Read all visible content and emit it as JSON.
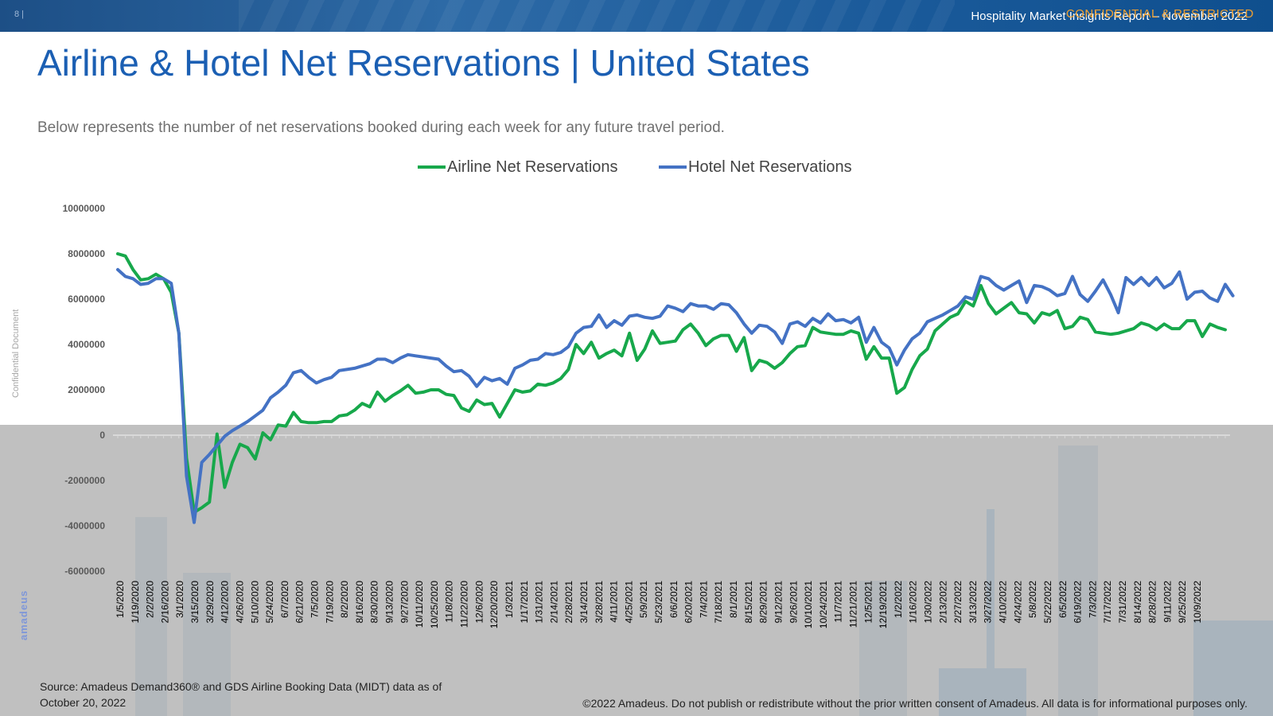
{
  "header": {
    "page_number": "8 |",
    "report_title": "Hospitality Market Insights Report – November 2022",
    "confidential": "CONFIDENTIAL & RESTRICTED"
  },
  "title": "Airline & Hotel Net Reservations | United States",
  "subtitle": "Below represents the number of net reservations booked during each week for any future travel period.",
  "side_label": "Confidential Document",
  "brand_mark": "amadeus",
  "source_note": "Source: Amadeus Demand360® and GDS Airline Booking Data (MIDT) data as of October 20, 2022",
  "copyright": "©2022 Amadeus. Do not publish or redistribute without the prior written consent of Amadeus. All data is for informational purposes only.",
  "colors": {
    "airline": "#17a84b",
    "hotel": "#4472c4",
    "title": "#1b5fb3"
  },
  "chart_data": {
    "type": "line",
    "legend": "top",
    "ylim": [
      -6000000,
      10000000
    ],
    "yticks": [
      10000000,
      8000000,
      6000000,
      4000000,
      2000000,
      0,
      -2000000,
      -4000000,
      -6000000
    ],
    "xtick_labels": [
      "1/5/2020",
      "1/19/2020",
      "2/2/2020",
      "2/16/2020",
      "3/1/2020",
      "3/15/2020",
      "3/29/2020",
      "4/12/2020",
      "4/26/2020",
      "5/10/2020",
      "5/24/2020",
      "6/7/2020",
      "6/21/2020",
      "7/5/2020",
      "7/19/2020",
      "8/2/2020",
      "8/16/2020",
      "8/30/2020",
      "9/13/2020",
      "9/27/2020",
      "10/11/2020",
      "10/25/2020",
      "11/8/2020",
      "11/22/2020",
      "12/6/2020",
      "12/20/2020",
      "1/3/2021",
      "1/17/2021",
      "1/31/2021",
      "2/14/2021",
      "2/28/2021",
      "3/14/2021",
      "3/28/2021",
      "4/11/2021",
      "4/25/2021",
      "5/9/2021",
      "5/23/2021",
      "6/6/2021",
      "6/20/2021",
      "7/4/2021",
      "7/18/2021",
      "8/1/2021",
      "8/15/2021",
      "8/29/2021",
      "9/12/2021",
      "9/26/2021",
      "10/10/2021",
      "10/24/2021",
      "11/7/2021",
      "11/21/2021",
      "12/5/2021",
      "12/19/2021",
      "1/2/2022",
      "1/16/2022",
      "1/30/2022",
      "2/13/2022",
      "2/27/2022",
      "3/13/2022",
      "3/27/2022",
      "4/10/2022",
      "4/24/2022",
      "5/8/2022",
      "5/22/2022",
      "6/5/2022",
      "6/19/2022",
      "7/3/2022",
      "7/17/2022",
      "7/31/2022",
      "8/14/2022",
      "8/28/2022",
      "9/11/2022",
      "9/25/2022",
      "10/9/2022"
    ],
    "series": [
      {
        "name": "Airline Net Reservations",
        "values": [
          8000000,
          7900000,
          7300000,
          6850000,
          6900000,
          7100000,
          6900000,
          6300000,
          4500000,
          -1000000,
          -3400000,
          -3200000,
          -2950000,
          50000,
          -2300000,
          -1200000,
          -400000,
          -550000,
          -1050000,
          100000,
          -200000,
          450000,
          400000,
          1000000,
          600000,
          550000,
          550000,
          600000,
          600000,
          850000,
          900000,
          1100000,
          1400000,
          1250000,
          1900000,
          1500000,
          1750000,
          1950000,
          2200000,
          1850000,
          1900000,
          2000000,
          2000000,
          1800000,
          1750000,
          1200000,
          1050000,
          1550000,
          1350000,
          1400000,
          800000,
          1400000,
          2000000,
          1900000,
          1950000,
          2250000,
          2200000,
          2300000,
          2500000,
          2900000,
          4000000,
          3600000,
          4100000,
          3400000,
          3600000,
          3750000,
          3500000,
          4500000,
          3300000,
          3800000,
          4600000,
          4050000,
          4100000,
          4150000,
          4650000,
          4900000,
          4500000,
          3950000,
          4250000,
          4400000,
          4400000,
          3700000,
          4300000,
          2850000,
          3300000,
          3200000,
          2950000,
          3200000,
          3600000,
          3900000,
          3950000,
          4750000,
          4550000,
          4500000,
          4450000,
          4450000,
          4600000,
          4500000,
          3350000,
          3900000,
          3400000,
          3400000,
          1850000,
          2100000,
          2900000,
          3500000,
          3800000,
          4600000,
          4900000,
          5200000,
          5350000,
          5900000,
          5700000,
          6600000,
          5800000,
          5350000,
          5600000,
          5850000,
          5400000,
          5350000,
          4950000,
          5400000,
          5300000,
          5500000,
          4700000,
          4800000,
          5200000,
          5100000,
          4550000,
          4500000,
          4450000,
          4500000,
          4600000,
          4700000,
          4950000,
          4850000,
          4650000,
          4900000,
          4700000,
          4700000,
          5050000,
          5050000,
          4350000,
          4900000,
          4750000,
          4650000
        ]
      },
      {
        "name": "Hotel Net Reservations",
        "values": [
          7300000,
          7000000,
          6900000,
          6650000,
          6700000,
          6900000,
          6900000,
          6700000,
          4500000,
          -1800000,
          -3850000,
          -1200000,
          -850000,
          -450000,
          -50000,
          200000,
          400000,
          600000,
          850000,
          1100000,
          1650000,
          1900000,
          2200000,
          2750000,
          2850000,
          2550000,
          2300000,
          2450000,
          2550000,
          2850000,
          2900000,
          2950000,
          3050000,
          3150000,
          3350000,
          3350000,
          3200000,
          3400000,
          3550000,
          3500000,
          3450000,
          3400000,
          3350000,
          3050000,
          2800000,
          2850000,
          2600000,
          2150000,
          2550000,
          2400000,
          2500000,
          2250000,
          2950000,
          3100000,
          3300000,
          3350000,
          3600000,
          3550000,
          3650000,
          3900000,
          4500000,
          4750000,
          4800000,
          5300000,
          4750000,
          5050000,
          4850000,
          5250000,
          5300000,
          5200000,
          5150000,
          5250000,
          5700000,
          5600000,
          5450000,
          5800000,
          5700000,
          5700000,
          5550000,
          5800000,
          5750000,
          5400000,
          4900000,
          4500000,
          4850000,
          4800000,
          4550000,
          4050000,
          4900000,
          5000000,
          4800000,
          5150000,
          4950000,
          5350000,
          5050000,
          5100000,
          4950000,
          5200000,
          4100000,
          4750000,
          4100000,
          3850000,
          3100000,
          3750000,
          4250000,
          4500000,
          5000000,
          5150000,
          5300000,
          5500000,
          5700000,
          6100000,
          6000000,
          7000000,
          6900000,
          6600000,
          6400000,
          6600000,
          6800000,
          5850000,
          6600000,
          6550000,
          6400000,
          6150000,
          6250000,
          7000000,
          6200000,
          5900000,
          6350000,
          6850000,
          6200000,
          5400000,
          6950000,
          6650000,
          6950000,
          6600000,
          6950000,
          6500000,
          6700000,
          7200000,
          6000000,
          6300000,
          6350000,
          6050000,
          5900000,
          6650000,
          6150000
        ]
      }
    ]
  }
}
